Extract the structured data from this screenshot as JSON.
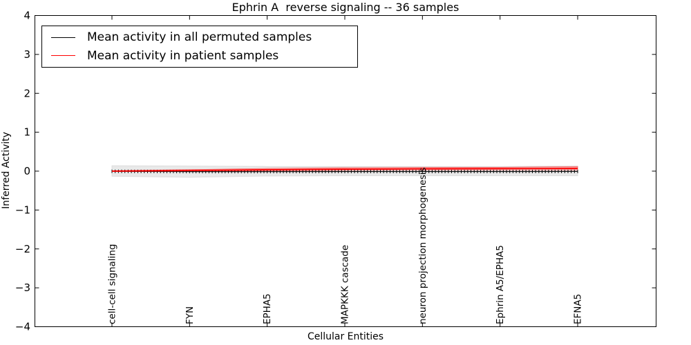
{
  "chart_data": {
    "type": "line",
    "title": "Ephrin A  reverse signaling -- 36 samples",
    "xlabel": "Cellular Entities",
    "ylabel": "Inferred Activity",
    "ylim": [
      -4,
      4
    ],
    "yticks": [
      -4,
      -3,
      -2,
      -1,
      0,
      1,
      2,
      3,
      4
    ],
    "grid": false,
    "legend_position": "upper left",
    "categories": [
      "cell-cell signaling",
      "FYN",
      "EPHA5",
      "MAPKKK cascade",
      "neuron projection morphogenesis",
      "Ephrin A5/EPHA5",
      "EFNA5"
    ],
    "series": [
      {
        "name": "Mean activity in all permuted samples",
        "color": "#000000",
        "marker": "|",
        "values": [
          -0.005,
          -0.012,
          -0.012,
          -0.01,
          -0.01,
          -0.01,
          -0.008
        ]
      },
      {
        "name": "Mean activity in patient samples",
        "color": "#ff0000",
        "marker": "none",
        "values": [
          0.0,
          0.015,
          0.035,
          0.05,
          0.06,
          0.065,
          0.07
        ]
      }
    ],
    "bands": [
      {
        "series": "Mean activity in all permuted samples",
        "fill": "#e9e9e9",
        "edge": "#d8d8d8",
        "upper": [
          0.14,
          0.13,
          0.12,
          0.12,
          0.12,
          0.12,
          0.13
        ],
        "lower": [
          -0.13,
          -0.16,
          -0.125,
          -0.12,
          -0.12,
          -0.12,
          -0.12
        ]
      },
      {
        "series": "Mean activity in patient samples",
        "fill": "#f6abab",
        "edge": "#f26a6a",
        "upper": [
          0.01,
          0.04,
          0.07,
          0.09,
          0.1,
          0.1,
          0.12
        ],
        "lower": [
          -0.01,
          -0.01,
          0.005,
          0.02,
          0.03,
          0.03,
          0.03
        ]
      }
    ]
  }
}
